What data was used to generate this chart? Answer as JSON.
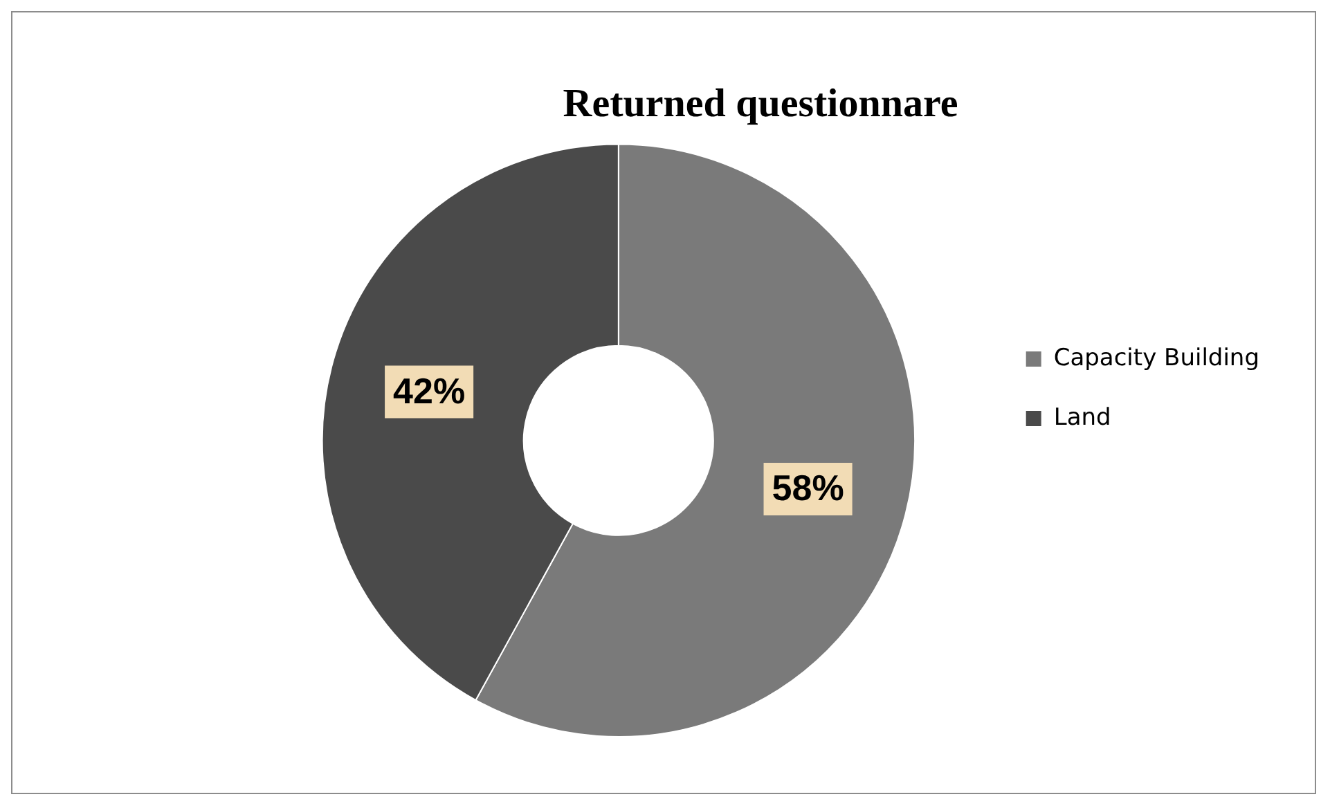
{
  "chart_data": {
    "type": "donut",
    "title": "Returned questionnare",
    "categories": [
      "Capacity Building",
      "Land"
    ],
    "values": [
      58,
      42
    ],
    "colors": [
      "#7a7a7a",
      "#4a4a4a"
    ],
    "value_labels": [
      "58%",
      "42%"
    ],
    "legend": "right"
  }
}
